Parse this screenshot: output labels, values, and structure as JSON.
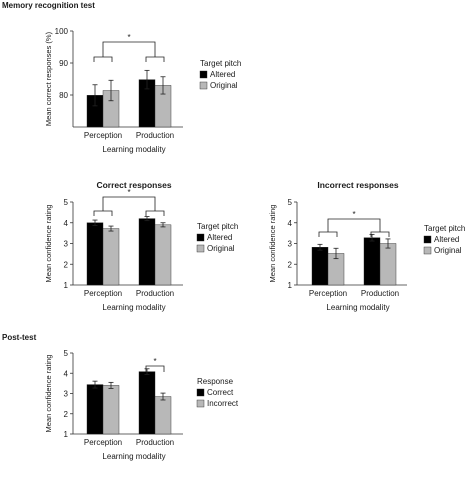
{
  "sections": {
    "memory": "Memory recognition test",
    "posttest": "Post-test"
  },
  "chart_data": [
    {
      "id": "memory",
      "type": "bar",
      "title": "",
      "xlabel": "Learning modality",
      "ylabel": "Mean correct responses (%)",
      "ylim": [
        70,
        100
      ],
      "yticks": [
        80,
        90,
        100
      ],
      "categories": [
        "Perception",
        "Production"
      ],
      "legend_title": "Target pitch",
      "legend_position": "right",
      "series": [
        {
          "name": "Altered",
          "color": "#000000",
          "values": [
            79.9,
            84.8
          ],
          "errors": [
            3.3,
            2.9
          ]
        },
        {
          "name": "Original",
          "color": "#b8b8b8",
          "values": [
            81.4,
            83.0
          ],
          "errors": [
            3.2,
            2.7
          ]
        }
      ],
      "significance": {
        "label": "*",
        "span": "between-modality"
      }
    },
    {
      "id": "correct",
      "type": "bar",
      "title": "Correct responses",
      "xlabel": "Learning modality",
      "ylabel": "Mean confidence rating",
      "ylim": [
        1,
        5
      ],
      "yticks": [
        1,
        2,
        3,
        4,
        5
      ],
      "categories": [
        "Perception",
        "Production"
      ],
      "legend_title": "Target pitch",
      "legend_position": "right",
      "series": [
        {
          "name": "Altered",
          "color": "#000000",
          "values": [
            4.0,
            4.2
          ],
          "errors": [
            0.13,
            0.1
          ]
        },
        {
          "name": "Original",
          "color": "#b8b8b8",
          "values": [
            3.72,
            3.9
          ],
          "errors": [
            0.12,
            0.1
          ]
        }
      ],
      "significance": {
        "label": "*",
        "span": "between-modality"
      }
    },
    {
      "id": "incorrect",
      "type": "bar",
      "title": "Incorrect responses",
      "xlabel": "Learning modality",
      "ylabel": "Mean confidence rating",
      "ylim": [
        1,
        5
      ],
      "yticks": [
        1,
        2,
        3,
        4,
        5
      ],
      "categories": [
        "Perception",
        "Production"
      ],
      "legend_title": "Target pitch",
      "legend_position": "right",
      "series": [
        {
          "name": "Altered",
          "color": "#000000",
          "values": [
            2.82,
            3.28
          ],
          "errors": [
            0.14,
            0.16
          ]
        },
        {
          "name": "Original",
          "color": "#b8b8b8",
          "values": [
            2.52,
            3.0
          ],
          "errors": [
            0.25,
            0.22
          ]
        }
      ],
      "significance": {
        "label": "*",
        "span": "between-modality"
      }
    },
    {
      "id": "posttest",
      "type": "bar",
      "title": "",
      "xlabel": "Learning modality",
      "ylabel": "Mean confidence rating",
      "ylim": [
        1,
        5
      ],
      "yticks": [
        1,
        2,
        3,
        4,
        5
      ],
      "categories": [
        "Perception",
        "Production"
      ],
      "legend_title": "Response",
      "legend_position": "right",
      "series": [
        {
          "name": "Correct",
          "color": "#000000",
          "values": [
            3.44,
            4.08
          ],
          "errors": [
            0.17,
            0.14
          ]
        },
        {
          "name": "Incorrect",
          "color": "#b8b8b8",
          "values": [
            3.4,
            2.85
          ],
          "errors": [
            0.15,
            0.17
          ]
        }
      ],
      "significance": {
        "label": "*",
        "span": "within-production"
      }
    }
  ]
}
